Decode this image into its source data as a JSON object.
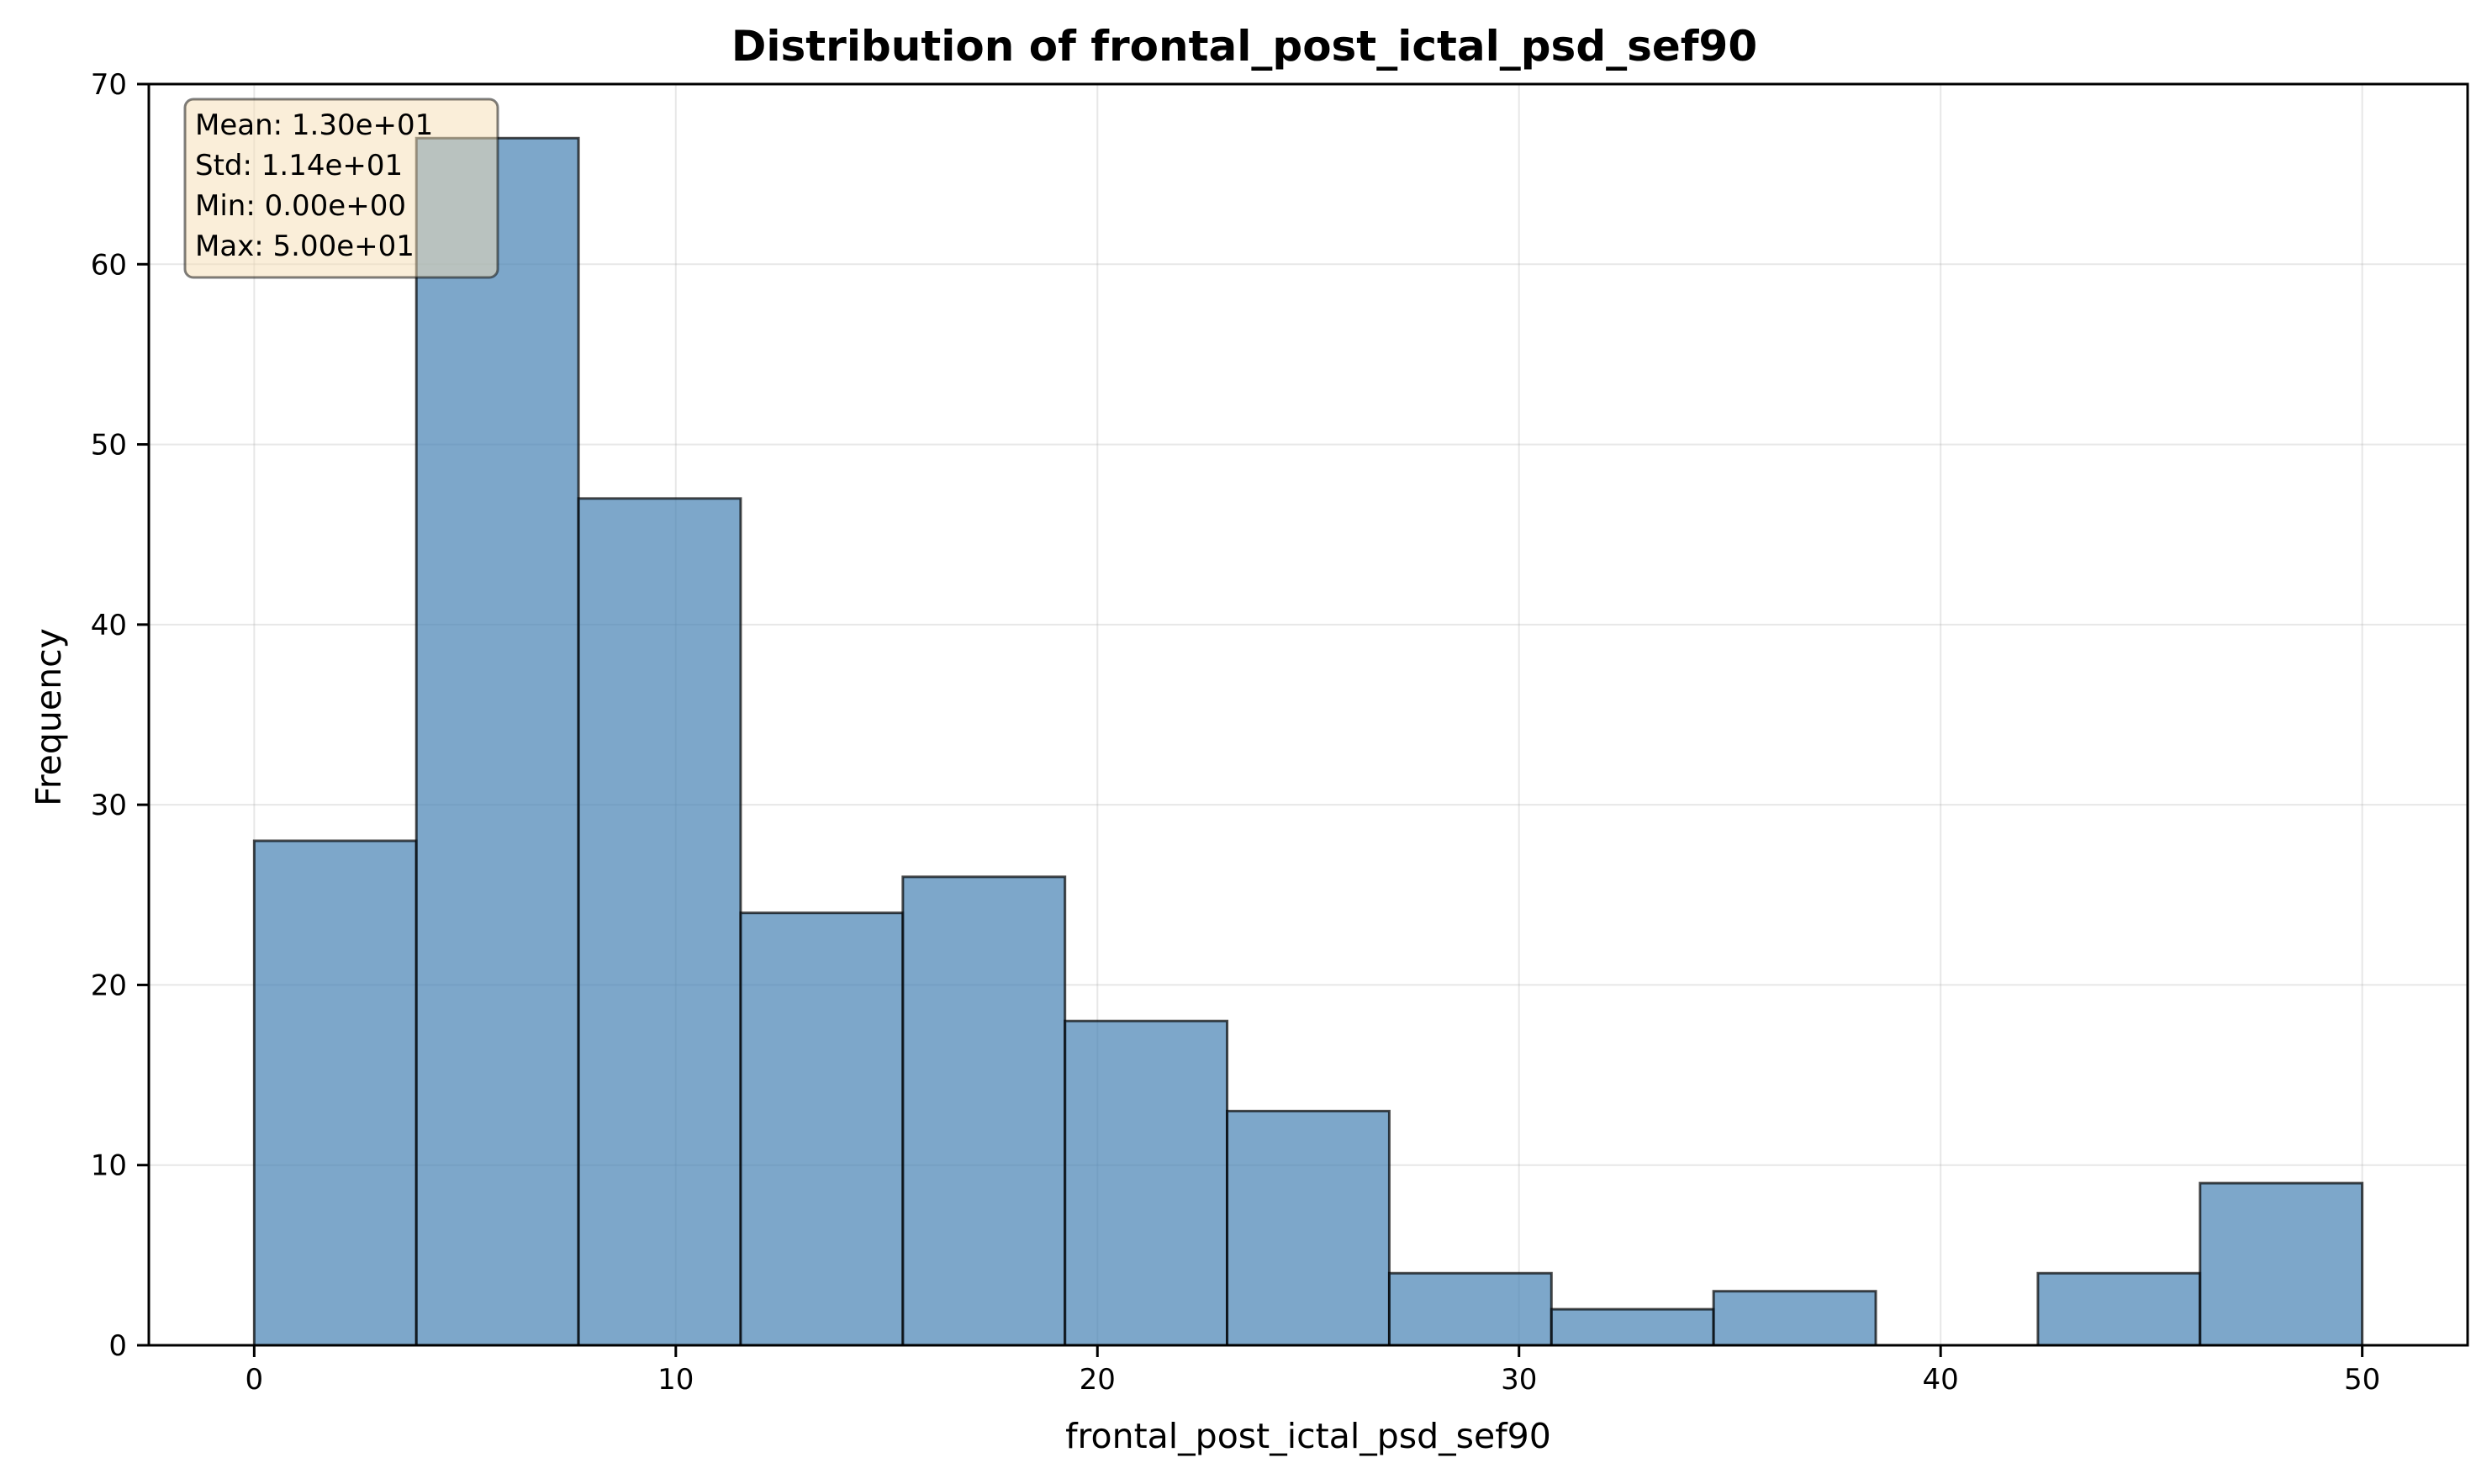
{
  "chart_data": {
    "type": "bar",
    "title": "Distribution of frontal_post_ictal_psd_sef90",
    "xlabel": "frontal_post_ictal_psd_sef90",
    "ylabel": "Frequency",
    "xlim": [
      -2.5,
      52.5
    ],
    "ylim": [
      0,
      70
    ],
    "xticks": [
      0,
      10,
      20,
      30,
      40,
      50
    ],
    "yticks": [
      0,
      10,
      20,
      30,
      40,
      50,
      60,
      70
    ],
    "grid": true,
    "bar_color": "#4682b4",
    "bins": [
      {
        "x0": 0.0,
        "x1": 3.846,
        "count": 28
      },
      {
        "x0": 3.846,
        "x1": 7.692,
        "count": 67
      },
      {
        "x0": 7.692,
        "x1": 11.538,
        "count": 47
      },
      {
        "x0": 11.538,
        "x1": 15.385,
        "count": 24
      },
      {
        "x0": 15.385,
        "x1": 19.231,
        "count": 26
      },
      {
        "x0": 19.231,
        "x1": 23.077,
        "count": 18
      },
      {
        "x0": 23.077,
        "x1": 26.923,
        "count": 13
      },
      {
        "x0": 26.923,
        "x1": 30.769,
        "count": 4
      },
      {
        "x0": 30.769,
        "x1": 34.615,
        "count": 2
      },
      {
        "x0": 34.615,
        "x1": 38.462,
        "count": 3
      },
      {
        "x0": 38.462,
        "x1": 42.308,
        "count": 0
      },
      {
        "x0": 42.308,
        "x1": 46.154,
        "count": 4
      },
      {
        "x0": 46.154,
        "x1": 50.0,
        "count": 9
      }
    ],
    "stats_box": {
      "lines": [
        "Mean: 1.30e+01",
        "Std: 1.14e+01",
        "Min: 0.00e+00",
        "Max: 5.00e+01"
      ],
      "placement": "top-left",
      "background": "#f5deb3"
    }
  }
}
